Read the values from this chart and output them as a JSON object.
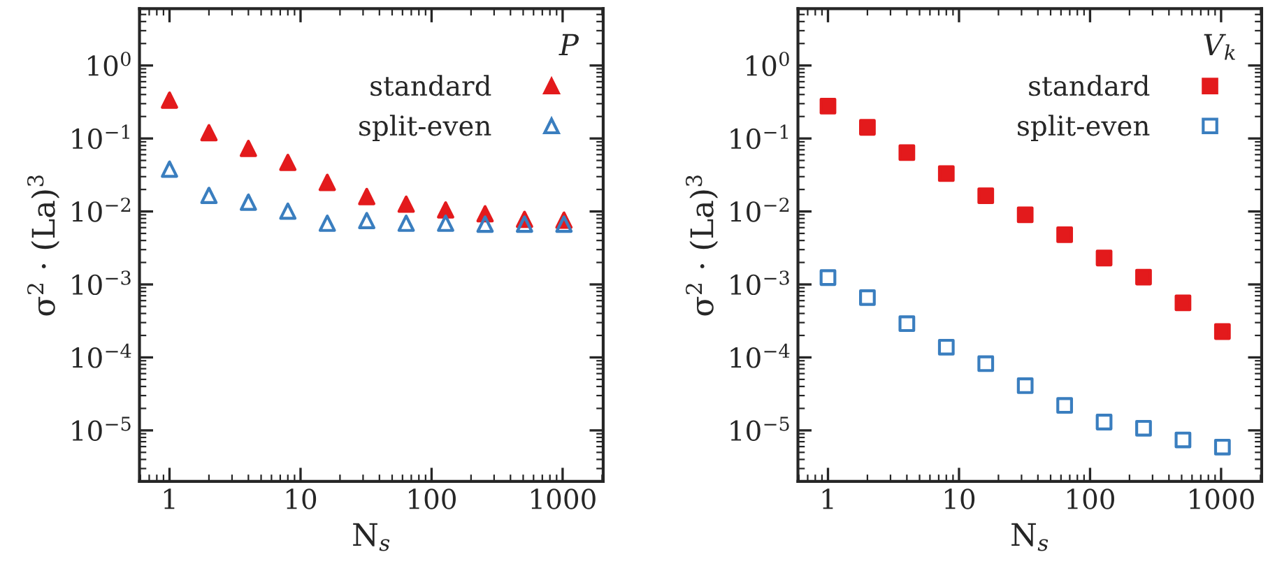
{
  "chart_data": [
    {
      "type": "scatter",
      "xlabel": "N$_{s}$",
      "ylabel": "σ$^{2}$ · (La)$^{3}$",
      "legend_title": "P",
      "legend": "top right",
      "log": "xy",
      "grid": false,
      "x": [
        1,
        2,
        4,
        8,
        16,
        32,
        64,
        128,
        256,
        512,
        1024
      ],
      "xlim": [
        0.59,
        2040
      ],
      "xticks": [
        1,
        10,
        100,
        1000
      ],
      "ylim": [
        2e-06,
        6
      ],
      "yticks": [
        {
          "value": 1,
          "label": "10$^{0}$"
        },
        {
          "value": 0.1,
          "label": "10$^{−1}$"
        },
        {
          "value": 0.01,
          "label": "10$^{−2}$"
        },
        {
          "value": 0.001,
          "label": "10$^{−3}$"
        },
        {
          "value": 0.0001,
          "label": "10$^{−4}$"
        },
        {
          "value": 1e-05,
          "label": "10$^{−5}$"
        }
      ],
      "series": [
        {
          "name": "standard",
          "color": "#e31a1c",
          "marker": "triangle",
          "values": [
            0.335,
            0.12,
            0.073,
            0.047,
            0.025,
            0.016,
            0.0126,
            0.0105,
            0.0093,
            0.0078,
            0.0076
          ]
        },
        {
          "name": "split-even",
          "color": "#3a7ebf",
          "marker": "triangle",
          "values": [
            0.038,
            0.0166,
            0.0134,
            0.0101,
            0.0069,
            0.0075,
            0.0069,
            0.0069,
            0.0067,
            0.0067,
            0.0067
          ]
        }
      ]
    },
    {
      "type": "scatter",
      "xlabel": "N$_{s}$",
      "ylabel": "σ$^{2}$ · (La)$^{3}$",
      "legend_title": "V$_{k}$",
      "legend": "top right",
      "log": "xy",
      "grid": false,
      "x": [
        1,
        2,
        4,
        8,
        16,
        32,
        64,
        128,
        256,
        512,
        1024
      ],
      "xlim": [
        0.59,
        2040
      ],
      "xticks": [
        1,
        10,
        100,
        1000
      ],
      "ylim": [
        2e-06,
        6
      ],
      "yticks": [
        {
          "value": 1,
          "label": "10$^{0}$"
        },
        {
          "value": 0.1,
          "label": "10$^{−1}$"
        },
        {
          "value": 0.01,
          "label": "10$^{−2}$"
        },
        {
          "value": 0.001,
          "label": "10$^{−3}$"
        },
        {
          "value": 0.0001,
          "label": "10$^{−4}$"
        },
        {
          "value": 1e-05,
          "label": "10$^{−5}$"
        }
      ],
      "series": [
        {
          "name": "standard",
          "color": "#e31a1c",
          "marker": "square",
          "values": [
            0.277,
            0.142,
            0.064,
            0.033,
            0.0164,
            0.009,
            0.0048,
            0.0023,
            0.00126,
            0.00056,
            0.000226
          ]
        },
        {
          "name": "split-even",
          "color": "#3a7ebf",
          "marker": "square",
          "values": [
            0.00124,
            0.00066,
            0.00029,
            0.000138,
            8.2e-05,
            4.1e-05,
            2.2e-05,
            1.3e-05,
            1.07e-05,
            7.4e-06,
            5.9e-06
          ]
        }
      ]
    }
  ]
}
